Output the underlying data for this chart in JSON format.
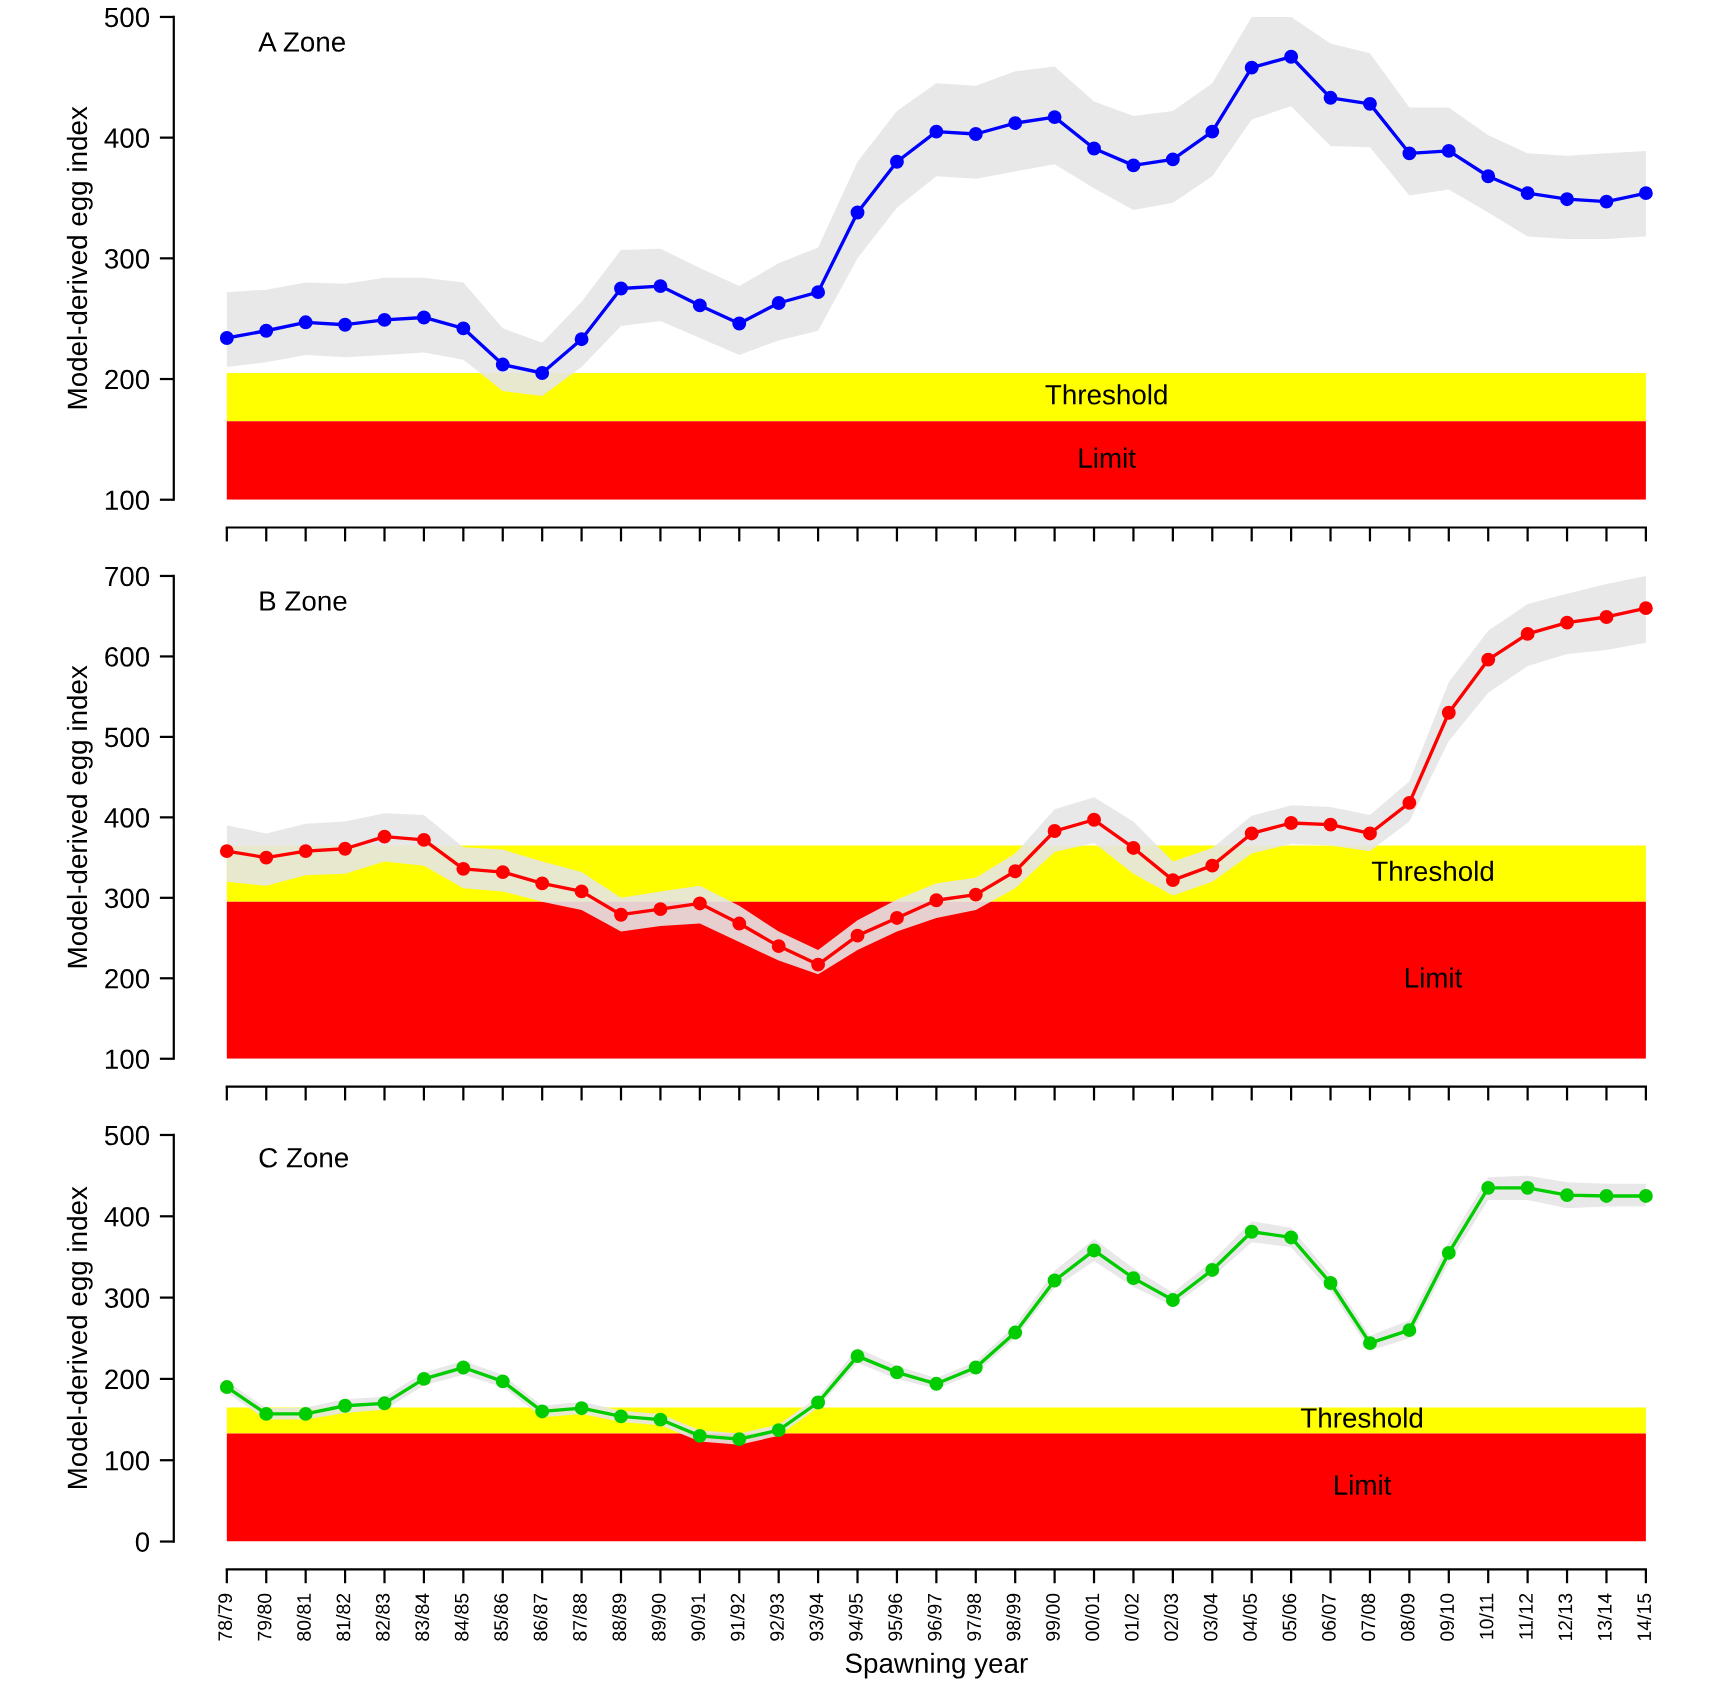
{
  "chart_data": [
    {
      "type": "line",
      "title": "A Zone",
      "ylabel": "Model-derived egg index",
      "categories": [
        null,
        null,
        null,
        null,
        null,
        null,
        null,
        null,
        null,
        null,
        null,
        null,
        null,
        null,
        null,
        null,
        null,
        null,
        null,
        null,
        null,
        null,
        null,
        null,
        null,
        null,
        null,
        null,
        null,
        null,
        null,
        null,
        null,
        null,
        null,
        null,
        null
      ],
      "series": [
        {
          "color": "#0000ff",
          "values": [
            234,
            240,
            247,
            245,
            249,
            251,
            242,
            212,
            205,
            233,
            275,
            277,
            261,
            246,
            263,
            272,
            338,
            380,
            405,
            403,
            412,
            417,
            391,
            377,
            382,
            405,
            458,
            467,
            433,
            428,
            387,
            389,
            368,
            354,
            349,
            347,
            354
          ],
          "lower": [
            210,
            214,
            220,
            218,
            220,
            222,
            216,
            190,
            186,
            210,
            244,
            248,
            234,
            220,
            232,
            240,
            300,
            342,
            368,
            366,
            372,
            378,
            358,
            340,
            346,
            368,
            415,
            426,
            393,
            392,
            352,
            357,
            338,
            318,
            316,
            316,
            318
          ],
          "upper": [
            272,
            274,
            280,
            279,
            284,
            284,
            280,
            242,
            230,
            264,
            307,
            308,
            292,
            277,
            296,
            309,
            380,
            422,
            445,
            443,
            455,
            459,
            430,
            418,
            422,
            445,
            500,
            500,
            478,
            470,
            425,
            425,
            402,
            387,
            385,
            387,
            389
          ]
        }
      ],
      "bands": [
        {
          "axis": "y",
          "from": 165,
          "to": 205,
          "label": "Threshold",
          "color": "#ffff00"
        },
        {
          "axis": "y",
          "from": 100,
          "to": 165,
          "label": "Limit",
          "color": "#ff0000"
        }
      ],
      "ylim": [
        100,
        500
      ],
      "yticks": [
        100,
        200,
        300,
        400,
        500
      ],
      "tick_labels": "y",
      "marker": "circle",
      "line_style": "solid",
      "grid": false
    },
    {
      "type": "line",
      "title": "B Zone",
      "ylabel": "Model-derived egg index",
      "categories": [
        null,
        null,
        null,
        null,
        null,
        null,
        null,
        null,
        null,
        null,
        null,
        null,
        null,
        null,
        null,
        null,
        null,
        null,
        null,
        null,
        null,
        null,
        null,
        null,
        null,
        null,
        null,
        null,
        null,
        null,
        null,
        null,
        null,
        null,
        null,
        null,
        null
      ],
      "series": [
        {
          "color": "#ff0000",
          "values": [
            358,
            350,
            358,
            361,
            376,
            372,
            336,
            332,
            318,
            308,
            279,
            286,
            293,
            268,
            240,
            217,
            253,
            275,
            297,
            304,
            333,
            383,
            397,
            362,
            322,
            340,
            380,
            393,
            391,
            380,
            418,
            530,
            596,
            628,
            642,
            649,
            660
          ],
          "lower": [
            320,
            315,
            328,
            330,
            345,
            340,
            312,
            308,
            295,
            285,
            258,
            265,
            268,
            245,
            222,
            205,
            235,
            258,
            275,
            285,
            312,
            357,
            368,
            330,
            303,
            320,
            355,
            367,
            365,
            358,
            395,
            495,
            555,
            588,
            603,
            608,
            617
          ],
          "upper": [
            390,
            380,
            392,
            395,
            405,
            403,
            363,
            360,
            345,
            332,
            300,
            308,
            315,
            290,
            258,
            235,
            272,
            298,
            318,
            325,
            355,
            410,
            425,
            395,
            345,
            362,
            402,
            415,
            413,
            403,
            445,
            568,
            632,
            665,
            678,
            690,
            700
          ]
        }
      ],
      "bands": [
        {
          "axis": "y",
          "from": 295,
          "to": 365,
          "label": "Threshold",
          "color": "#ffff00"
        },
        {
          "axis": "y",
          "from": 100,
          "to": 295,
          "label": "Limit",
          "color": "#ff0000"
        }
      ],
      "ylim": [
        100,
        700
      ],
      "yticks": [
        100,
        200,
        300,
        400,
        500,
        600,
        700
      ],
      "tick_labels": "y",
      "marker": "circle",
      "line_style": "solid",
      "grid": false
    },
    {
      "type": "line",
      "title": "C Zone",
      "ylabel": "Model-derived egg index",
      "xlabel": "Spawning year",
      "categories": [
        "78/79",
        "79/80",
        "80/81",
        "81/82",
        "82/83",
        "83/84",
        "84/85",
        "85/86",
        "86/87",
        "87/88",
        "88/89",
        "89/90",
        "90/91",
        "91/92",
        "92/93",
        "93/94",
        "94/95",
        "95/96",
        "96/97",
        "97/98",
        "98/99",
        "99/00",
        "00/01",
        "01/02",
        "02/03",
        "03/04",
        "04/05",
        "05/06",
        "06/07",
        "07/08",
        "08/09",
        "09/10",
        "10/11",
        "11/12",
        "12/13",
        "13/14",
        "14/15"
      ],
      "series": [
        {
          "color": "#00cc00",
          "values": [
            190,
            157,
            157,
            167,
            170,
            200,
            214,
            197,
            160,
            164,
            154,
            150,
            130,
            126,
            137,
            171,
            228,
            208,
            194,
            214,
            257,
            321,
            358,
            324,
            297,
            334,
            381,
            374,
            318,
            244,
            260,
            355,
            435,
            435,
            426,
            425,
            425
          ],
          "lower": [
            183,
            150,
            150,
            158,
            162,
            192,
            205,
            190,
            153,
            157,
            147,
            143,
            123,
            119,
            130,
            165,
            220,
            200,
            188,
            207,
            250,
            312,
            345,
            313,
            290,
            325,
            368,
            362,
            308,
            235,
            250,
            343,
            420,
            420,
            410,
            412,
            412
          ],
          "upper": [
            197,
            164,
            165,
            175,
            178,
            208,
            222,
            205,
            167,
            172,
            161,
            157,
            137,
            133,
            144,
            178,
            238,
            216,
            201,
            221,
            266,
            333,
            372,
            336,
            306,
            345,
            394,
            386,
            328,
            253,
            272,
            368,
            448,
            450,
            442,
            440,
            440
          ]
        }
      ],
      "bands": [
        {
          "axis": "y",
          "from": 133,
          "to": 165,
          "label": "Threshold",
          "color": "#ffff00"
        },
        {
          "axis": "y",
          "from": 0,
          "to": 133,
          "label": "Limit",
          "color": "#ff0000"
        }
      ],
      "ylim": [
        0,
        500
      ],
      "yticks": [
        0,
        100,
        200,
        300,
        400,
        500
      ],
      "marker": "circle",
      "line_style": "solid",
      "grid": false
    }
  ]
}
